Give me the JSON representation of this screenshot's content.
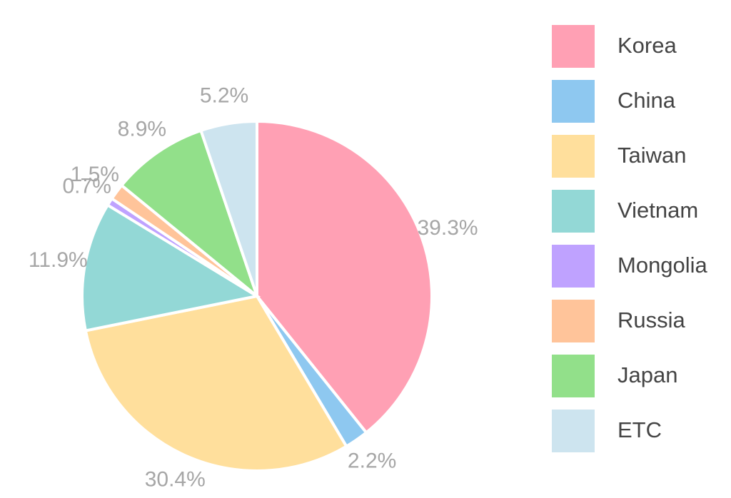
{
  "chart_data": {
    "type": "pie",
    "categories": [
      "Korea",
      "China",
      "Taiwan",
      "Vietnam",
      "Mongolia",
      "Russia",
      "Japan",
      "ETC"
    ],
    "values": [
      39.3,
      2.2,
      30.4,
      11.9,
      0.7,
      1.5,
      8.9,
      5.2
    ],
    "value_labels": [
      "39.3%",
      "2.2%",
      "30.4%",
      "11.9%",
      "0.7%",
      "1.5%",
      "8.9%",
      "5.2%"
    ],
    "colors": [
      "#ffa0b4",
      "#8ec8f0",
      "#ffdf9c",
      "#93d8d6",
      "#bfa2ff",
      "#ffc49a",
      "#92e08a",
      "#cde4ef"
    ],
    "legend": "right"
  }
}
